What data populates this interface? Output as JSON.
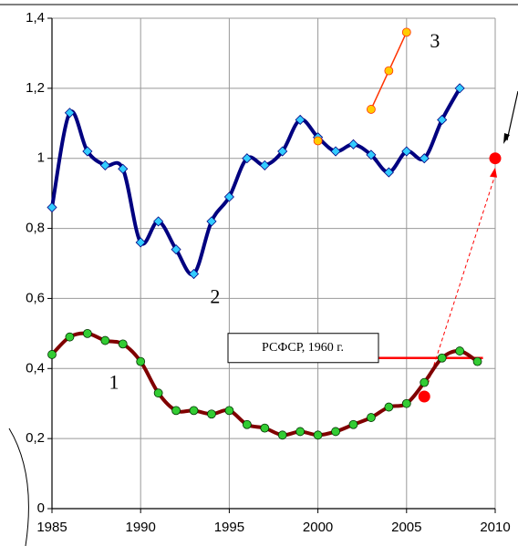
{
  "chart_data": {
    "type": "line",
    "xlim": [
      1985,
      2010
    ],
    "xticks": [
      1985,
      1990,
      1995,
      2000,
      2005,
      2010
    ],
    "ylim": [
      0,
      1.4
    ],
    "yticks": [
      0,
      {
        "value": 0.2,
        "label": "0,2"
      },
      {
        "value": 0.4,
        "label": "0,4"
      },
      {
        "value": 0.6,
        "label": "0,6"
      },
      {
        "value": 0.8,
        "label": "0,8"
      },
      1,
      {
        "value": 1.2,
        "label": "1,2"
      },
      {
        "value": 1.4,
        "label": "1,4"
      }
    ],
    "grid": true,
    "series": [
      {
        "color": "#000080",
        "marker": "diamond",
        "marker_color": "#33ccff",
        "x": [
          1985,
          1986,
          1987,
          1988,
          1989,
          1990,
          1991,
          1992,
          1993,
          1994,
          1995,
          1996,
          1997,
          1998,
          1999,
          2000,
          2001,
          2002,
          2003,
          2004,
          2005,
          2006,
          2007,
          2008
        ],
        "values": [
          0.86,
          1.13,
          1.02,
          0.98,
          0.97,
          0.76,
          0.82,
          0.74,
          0.67,
          0.82,
          0.89,
          1.0,
          0.98,
          1.02,
          1.11,
          1.06,
          1.02,
          1.04,
          1.01,
          0.96,
          1.02,
          1.0,
          1.11,
          1.2
        ]
      },
      {
        "color": "#800000",
        "marker": "circle",
        "marker_color": "#33cc33",
        "x": [
          1985,
          1986,
          1987,
          1988,
          1989,
          1990,
          1991,
          1992,
          1993,
          1994,
          1995,
          1996,
          1997,
          1998,
          1999,
          2000,
          2001,
          2002,
          2003,
          2004,
          2005,
          2006,
          2007,
          2008,
          2009
        ],
        "values": [
          0.44,
          0.49,
          0.5,
          0.48,
          0.47,
          0.42,
          0.33,
          0.28,
          0.28,
          0.27,
          0.28,
          0.24,
          0.23,
          0.21,
          0.22,
          0.21,
          0.22,
          0.24,
          0.26,
          0.29,
          0.3,
          0.36,
          0.43,
          0.45,
          0.42
        ]
      },
      {
        "color": "#ff3300",
        "marker": "circle",
        "marker_color": "#ffcc00",
        "x": [
          2003,
          2004,
          2005
        ],
        "values": [
          1.14,
          1.25,
          1.36
        ]
      },
      {
        "color": "none",
        "marker": "circle",
        "marker_color": "#ffcc00",
        "x": [
          2000
        ],
        "values": [
          1.05
        ]
      },
      {
        "color": "none",
        "marker": "big-circle",
        "marker_color": "#ff0000",
        "x": [
          2006,
          2010
        ],
        "values": [
          0.32,
          1.0
        ]
      }
    ],
    "reference": {
      "label": "РСФСР, 1960 г.",
      "value": 0.43,
      "color": "#ff0000"
    },
    "annotations": [
      "1",
      "2",
      "3"
    ]
  }
}
